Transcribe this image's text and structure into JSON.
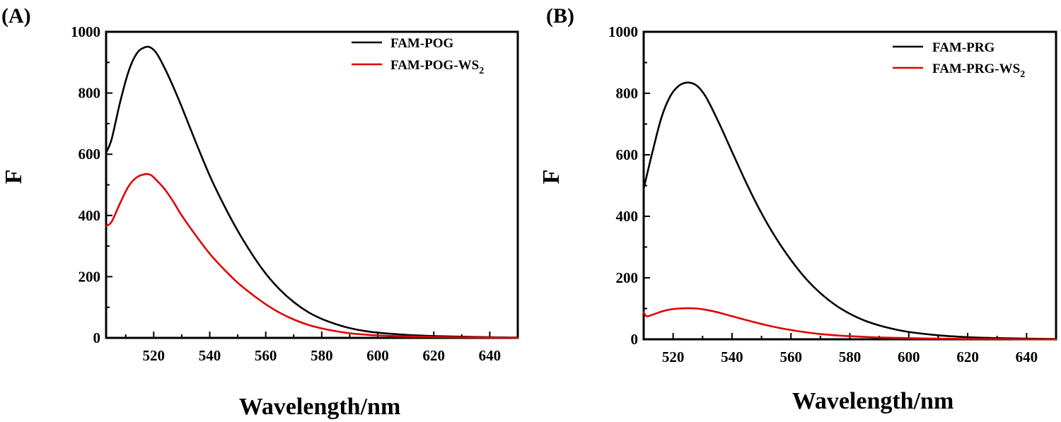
{
  "chart_data": [
    {
      "type": "line",
      "panel_label": "(A)",
      "xlabel": "Wavelength/nm",
      "ylabel": "F",
      "xlim": [
        503,
        650
      ],
      "ylim": [
        0,
        1000
      ],
      "xticks": [
        520,
        540,
        560,
        580,
        600,
        620,
        640
      ],
      "yticks": [
        0,
        200,
        400,
        600,
        800,
        1000
      ],
      "legend_position": "top-right",
      "series": [
        {
          "name": "FAM-POG",
          "color": "#000000",
          "x": [
            503,
            505,
            508,
            511,
            514,
            517,
            519,
            521,
            524,
            527,
            530,
            535,
            540,
            545,
            550,
            555,
            560,
            565,
            570,
            575,
            580,
            585,
            590,
            595,
            600,
            610,
            620,
            630,
            640,
            650
          ],
          "y": [
            605,
            650,
            770,
            870,
            930,
            950,
            948,
            930,
            880,
            820,
            755,
            640,
            530,
            435,
            350,
            275,
            210,
            158,
            117,
            85,
            62,
            45,
            32,
            23,
            17,
            10,
            6,
            4,
            2,
            1
          ]
        },
        {
          "name": "FAM-POG-WS",
          "name_subscript": "2",
          "color": "#e00000",
          "x": [
            503,
            505,
            508,
            511,
            514,
            517,
            519,
            521,
            524,
            527,
            530,
            535,
            540,
            545,
            550,
            555,
            560,
            565,
            570,
            575,
            580,
            585,
            590,
            595,
            600,
            610,
            620,
            630,
            640,
            650
          ],
          "y": [
            365,
            380,
            440,
            495,
            525,
            535,
            532,
            515,
            485,
            445,
            400,
            335,
            275,
            225,
            180,
            143,
            110,
            82,
            60,
            43,
            31,
            22,
            15,
            11,
            8,
            5,
            3,
            2,
            1,
            0
          ]
        }
      ]
    },
    {
      "type": "line",
      "panel_label": "(B)",
      "xlabel": "Wavelength/nm",
      "ylabel": "F",
      "xlim": [
        510,
        650
      ],
      "ylim": [
        0,
        1000
      ],
      "xticks": [
        520,
        540,
        560,
        580,
        600,
        620,
        640
      ],
      "yticks": [
        0,
        200,
        400,
        600,
        800,
        1000
      ],
      "legend_position": "top-right",
      "series": [
        {
          "name": "FAM-PRG",
          "color": "#000000",
          "x": [
            510,
            513,
            516,
            519,
            522,
            525,
            528,
            531,
            535,
            540,
            545,
            550,
            555,
            560,
            565,
            570,
            575,
            580,
            585,
            590,
            595,
            600,
            610,
            620,
            630,
            640,
            650
          ],
          "y": [
            490,
            610,
            720,
            790,
            825,
            835,
            825,
            790,
            715,
            610,
            505,
            410,
            328,
            258,
            198,
            150,
            112,
            83,
            61,
            45,
            33,
            24,
            13,
            7,
            4,
            2,
            1
          ]
        },
        {
          "name": "FAM-PRG-WS",
          "name_subscript": "2",
          "color": "#e00000",
          "x": [
            510,
            511,
            513,
            516,
            519,
            522,
            525,
            528,
            531,
            535,
            540,
            545,
            550,
            555,
            560,
            565,
            570,
            575,
            580,
            590,
            600,
            610,
            620,
            630,
            640,
            650
          ],
          "y": [
            88,
            75,
            80,
            90,
            97,
            100,
            101,
            100,
            96,
            88,
            75,
            62,
            50,
            39,
            30,
            23,
            17,
            13,
            10,
            6,
            4,
            2,
            1,
            1,
            0,
            0
          ]
        }
      ]
    }
  ]
}
